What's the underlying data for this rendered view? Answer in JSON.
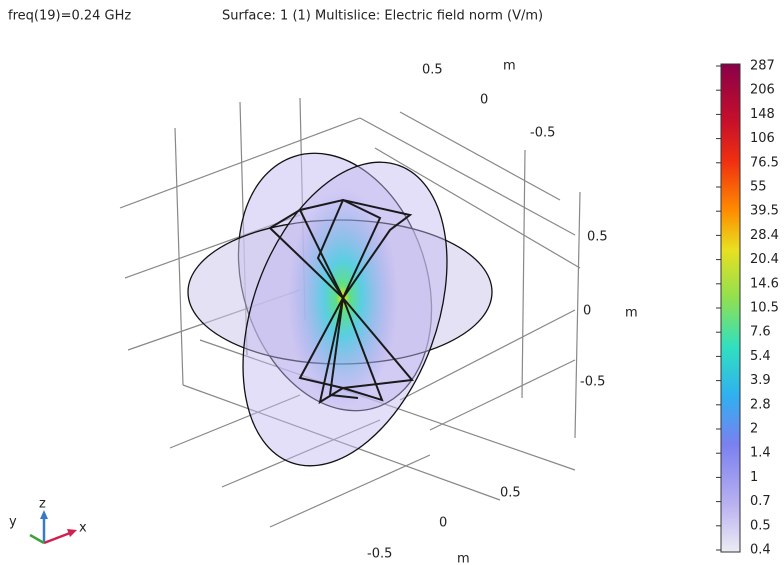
{
  "header": {
    "parameter": "freq(19)=0.24 GHz",
    "title": "Surface: 1 (1)  Multislice: Electric field norm (V/m)"
  },
  "axes": {
    "top": {
      "ticks": [
        0.5,
        0,
        -0.5
      ],
      "unit": "m"
    },
    "right": {
      "ticks": [
        0.5,
        0,
        -0.5
      ],
      "unit": "m"
    },
    "bottom": {
      "ticks": [
        0.5,
        0,
        -0.5
      ],
      "unit": "m"
    }
  },
  "triad": {
    "z": "z",
    "y": "y",
    "x": "x"
  },
  "colorbar": {
    "labels": [
      287,
      206,
      148,
      106,
      76.5,
      55,
      39.5,
      28.4,
      20.4,
      14.6,
      10.5,
      7.6,
      5.4,
      3.9,
      2.8,
      2,
      1.4,
      1,
      0.7,
      0.5,
      0.4
    ]
  }
}
